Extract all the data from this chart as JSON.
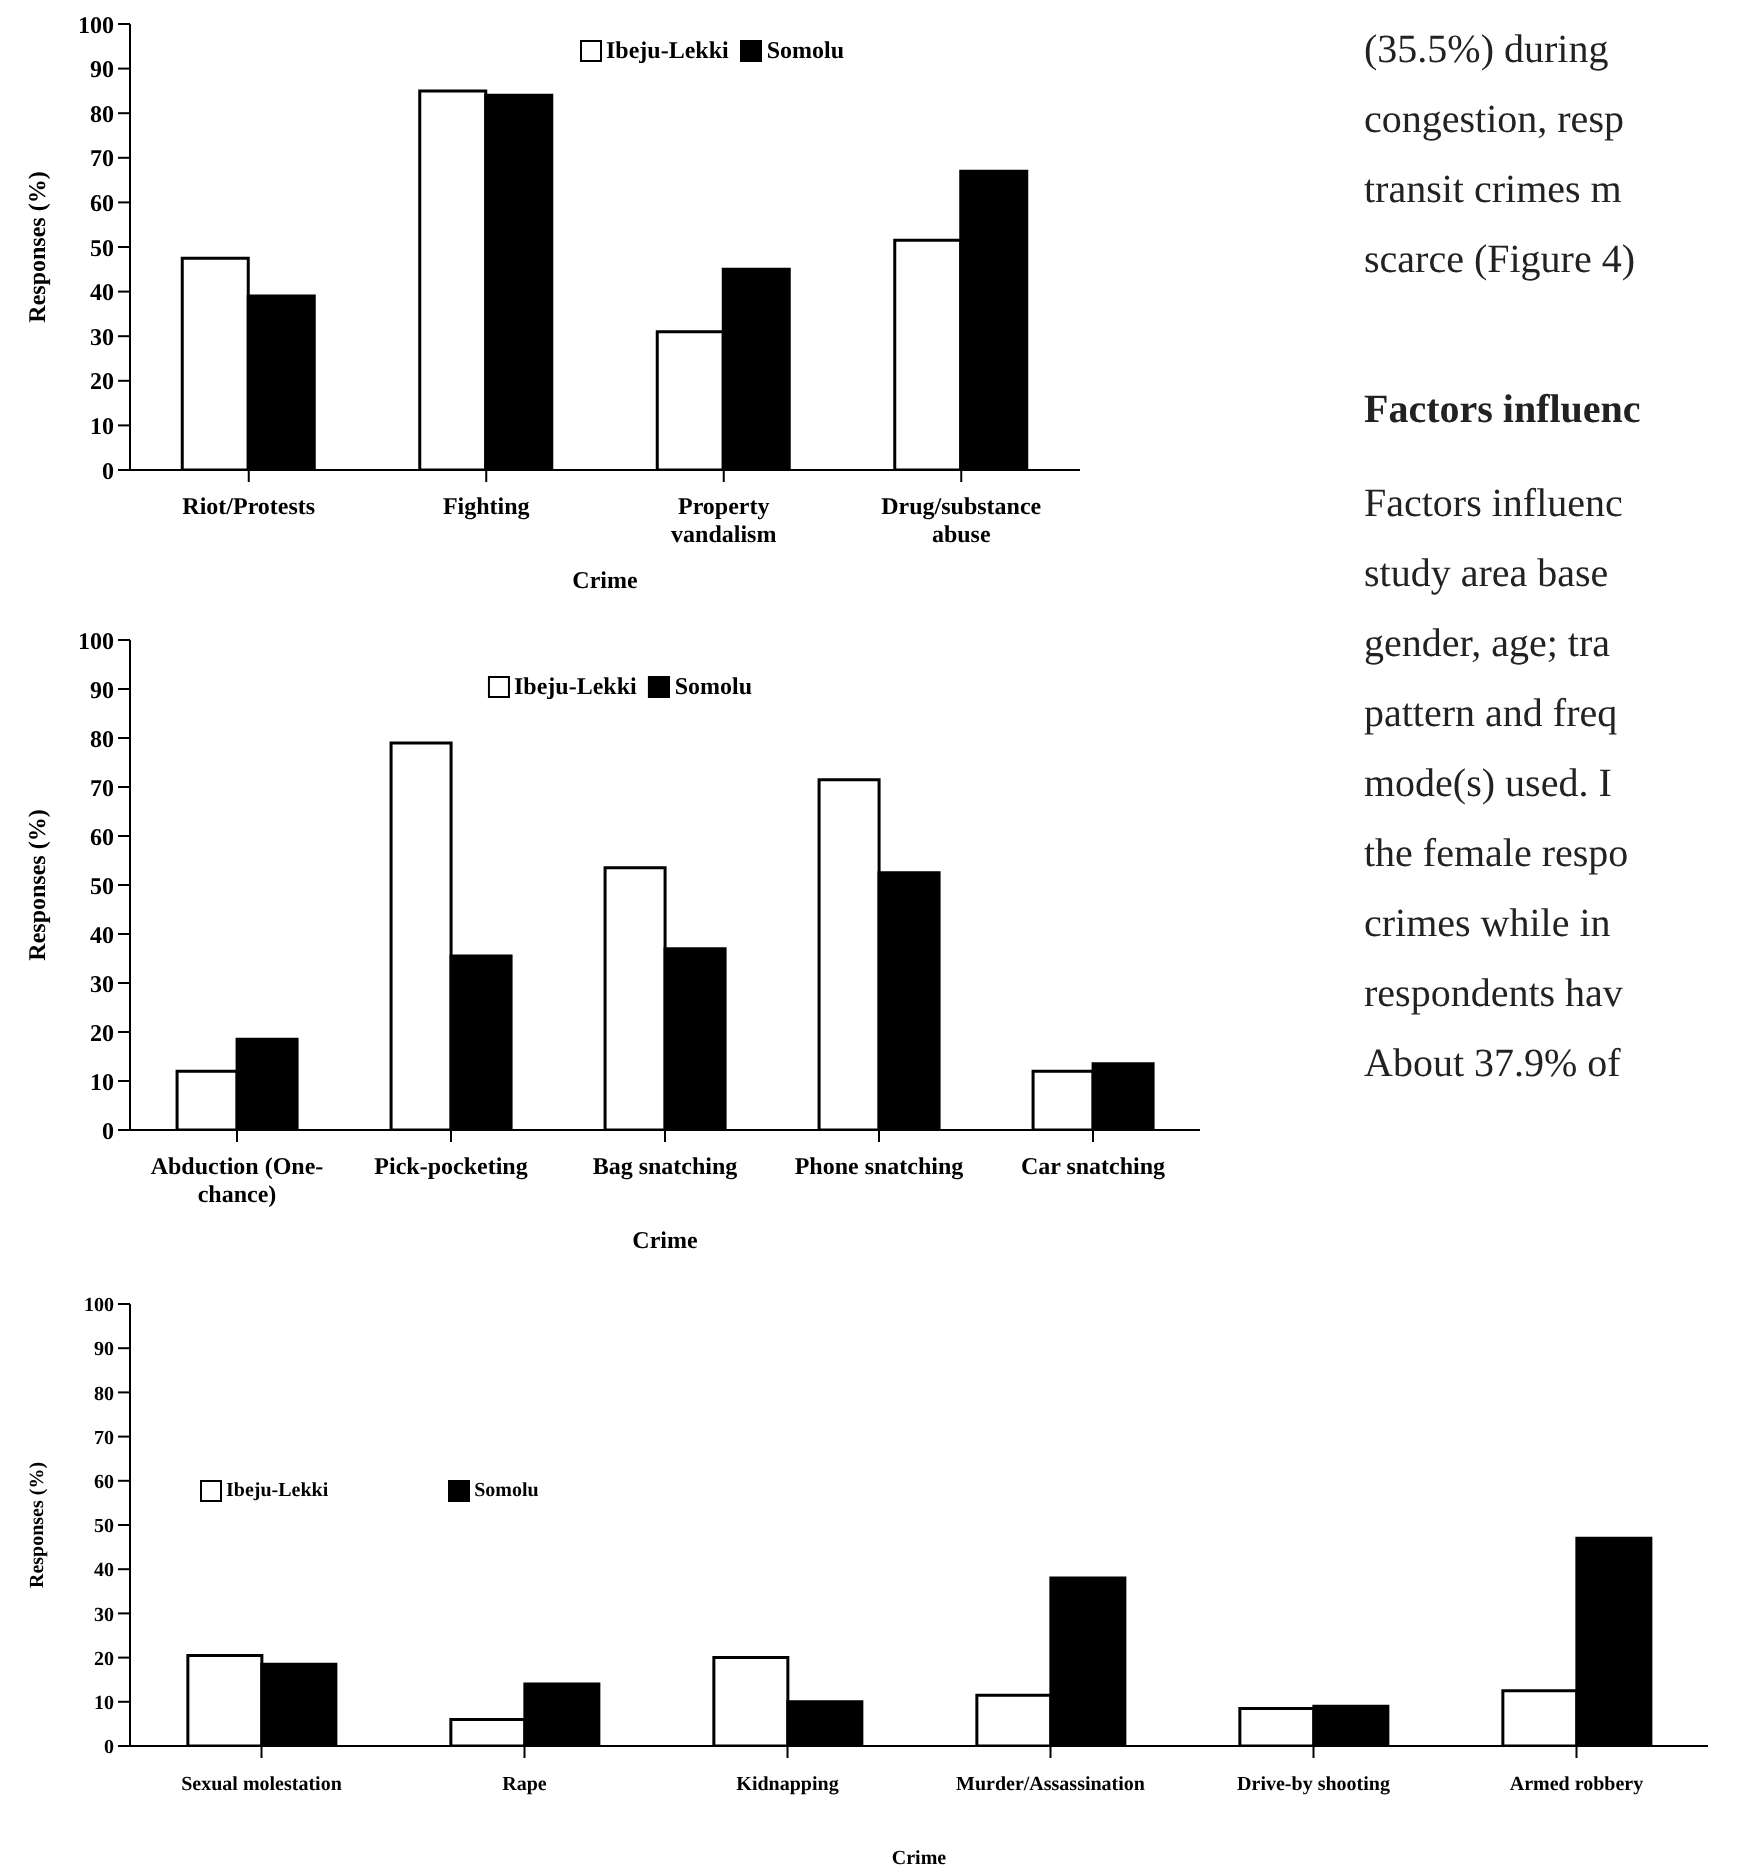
{
  "chart_data": [
    {
      "type": "bar",
      "xlabel": "Crime",
      "ylabel": "Responses (%)",
      "categories": [
        "Riot/Protests",
        "Fighting",
        "Property vandalism",
        "Drug/substance abuse"
      ],
      "series": [
        {
          "name": "Ibeju-Lekki",
          "color": "#ffffff",
          "values": [
            47.5,
            85,
            31,
            51.5
          ]
        },
        {
          "name": "Somolu",
          "color": "#000000",
          "values": [
            39,
            84,
            45,
            67
          ]
        }
      ],
      "ylim": [
        0,
        100
      ],
      "yticks": [
        0,
        10,
        20,
        30,
        40,
        50,
        60,
        70,
        80,
        90,
        100
      ],
      "legend": "top"
    },
    {
      "type": "bar",
      "xlabel": "Crime",
      "ylabel": "Responses (%)",
      "categories": [
        "Abduction (One-chance)",
        "Pick-pocketing",
        "Bag snatching",
        "Phone snatching",
        "Car snatching"
      ],
      "series": [
        {
          "name": "Ibeju-Lekki",
          "color": "#ffffff",
          "values": [
            12,
            79,
            53.5,
            71.5,
            12
          ]
        },
        {
          "name": "Somolu",
          "color": "#000000",
          "values": [
            18.5,
            35.5,
            37,
            52.5,
            13.5
          ]
        }
      ],
      "ylim": [
        0,
        100
      ],
      "yticks": [
        0,
        10,
        20,
        30,
        40,
        50,
        60,
        70,
        80,
        90,
        100
      ],
      "legend": "top"
    },
    {
      "type": "bar",
      "xlabel": "Crime",
      "ylabel": "Responses (%)",
      "categories": [
        "Sexual molestation",
        "Rape",
        "Kidnapping",
        "Murder/Assassination",
        "Drive-by shooting",
        "Armed robbery"
      ],
      "series": [
        {
          "name": "Ibeju-Lekki",
          "color": "#ffffff",
          "values": [
            20.5,
            6,
            20,
            11.5,
            8.5,
            12.5
          ]
        },
        {
          "name": "Somolu",
          "color": "#000000",
          "values": [
            18.5,
            14,
            10,
            38,
            9,
            47
          ]
        }
      ],
      "ylim": [
        0,
        100
      ],
      "yticks": [
        0,
        10,
        20,
        30,
        40,
        50,
        60,
        70,
        80,
        90,
        100
      ],
      "legend": "left"
    },
    {
      "type": "other",
      "title": "Factors influenc",
      "annotations": [
        "(35.5%) during",
        "congestion, resp",
        "transit crimes m",
        "scarce (Figure 4)",
        "Factors influenc",
        "study area base",
        "gender, age; tra",
        "pattern and freq",
        "mode(s) used. I",
        "the female respo",
        "crimes while in",
        "respondents hav",
        "About 37.9% of"
      ]
    }
  ]
}
